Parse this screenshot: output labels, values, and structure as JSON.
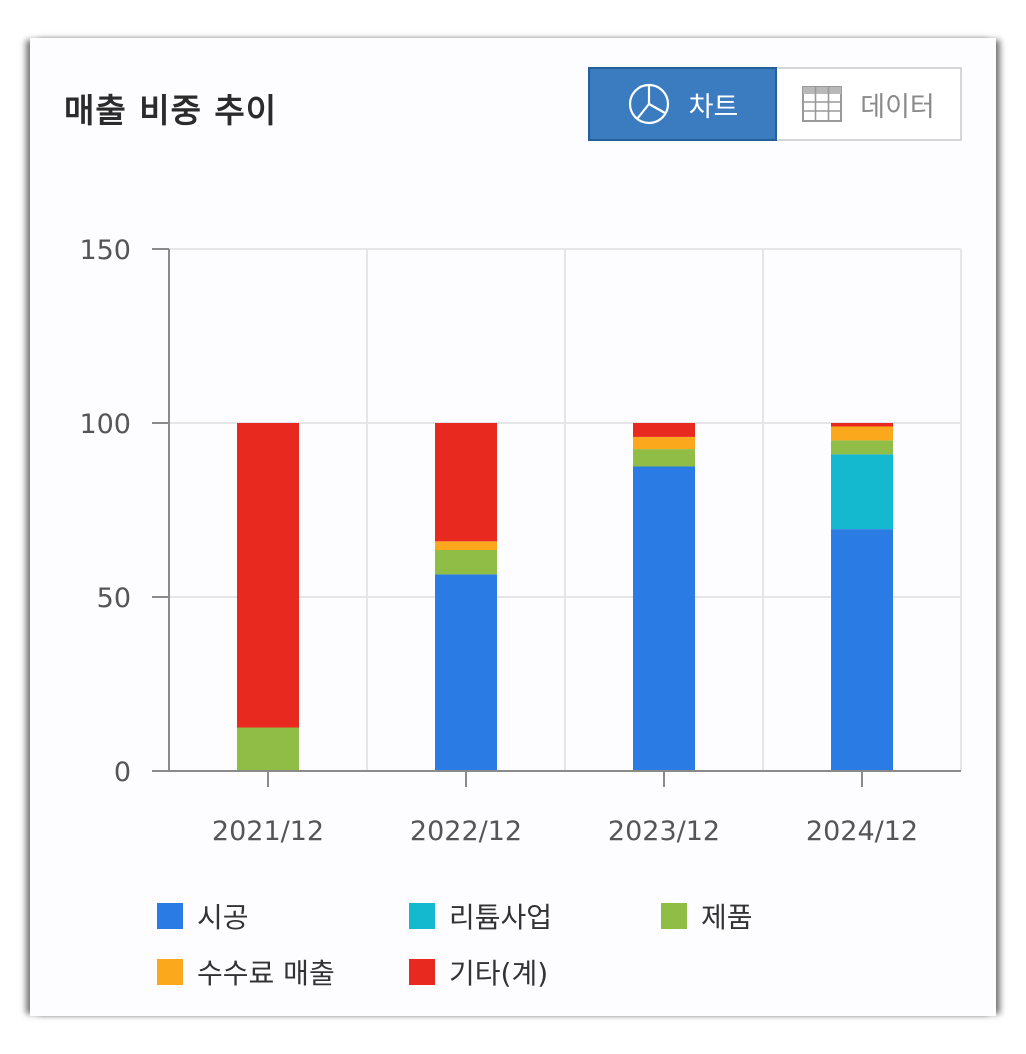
{
  "header": {
    "title": "매출 비중 추이",
    "chart_button_label": "차트",
    "data_button_label": "데이터"
  },
  "icons": {
    "chart_button": "pie-chart-icon",
    "data_button": "table-grid-icon"
  },
  "colors": {
    "accent": "#3a7cbf",
    "series": [
      "#2b7be4",
      "#14b8cf",
      "#8fbd45",
      "#fba81d",
      "#e8291f"
    ]
  },
  "chart_data": {
    "type": "bar",
    "stacked": true,
    "categories": [
      "2021/12",
      "2022/12",
      "2023/12",
      "2024/12"
    ],
    "series": [
      {
        "name": "시공",
        "color": "#2b7be4",
        "values": [
          0,
          56.5,
          87.5,
          69.5
        ]
      },
      {
        "name": "리튬사업",
        "color": "#14b8cf",
        "values": [
          0,
          0,
          0,
          21.5
        ]
      },
      {
        "name": "제품",
        "color": "#8fbd45",
        "values": [
          12.5,
          7.0,
          5.0,
          4.0
        ]
      },
      {
        "name": "수수료 매출",
        "color": "#fba81d",
        "values": [
          0,
          2.5,
          3.5,
          4.0
        ]
      },
      {
        "name": "기타(계)",
        "color": "#e8291f",
        "values": [
          87.5,
          34.0,
          4.0,
          1.0
        ]
      }
    ],
    "yticks": [
      "0",
      "50",
      "100",
      "150"
    ],
    "ylim": [
      0,
      150
    ],
    "grid": true,
    "legend_position": "bottom"
  }
}
